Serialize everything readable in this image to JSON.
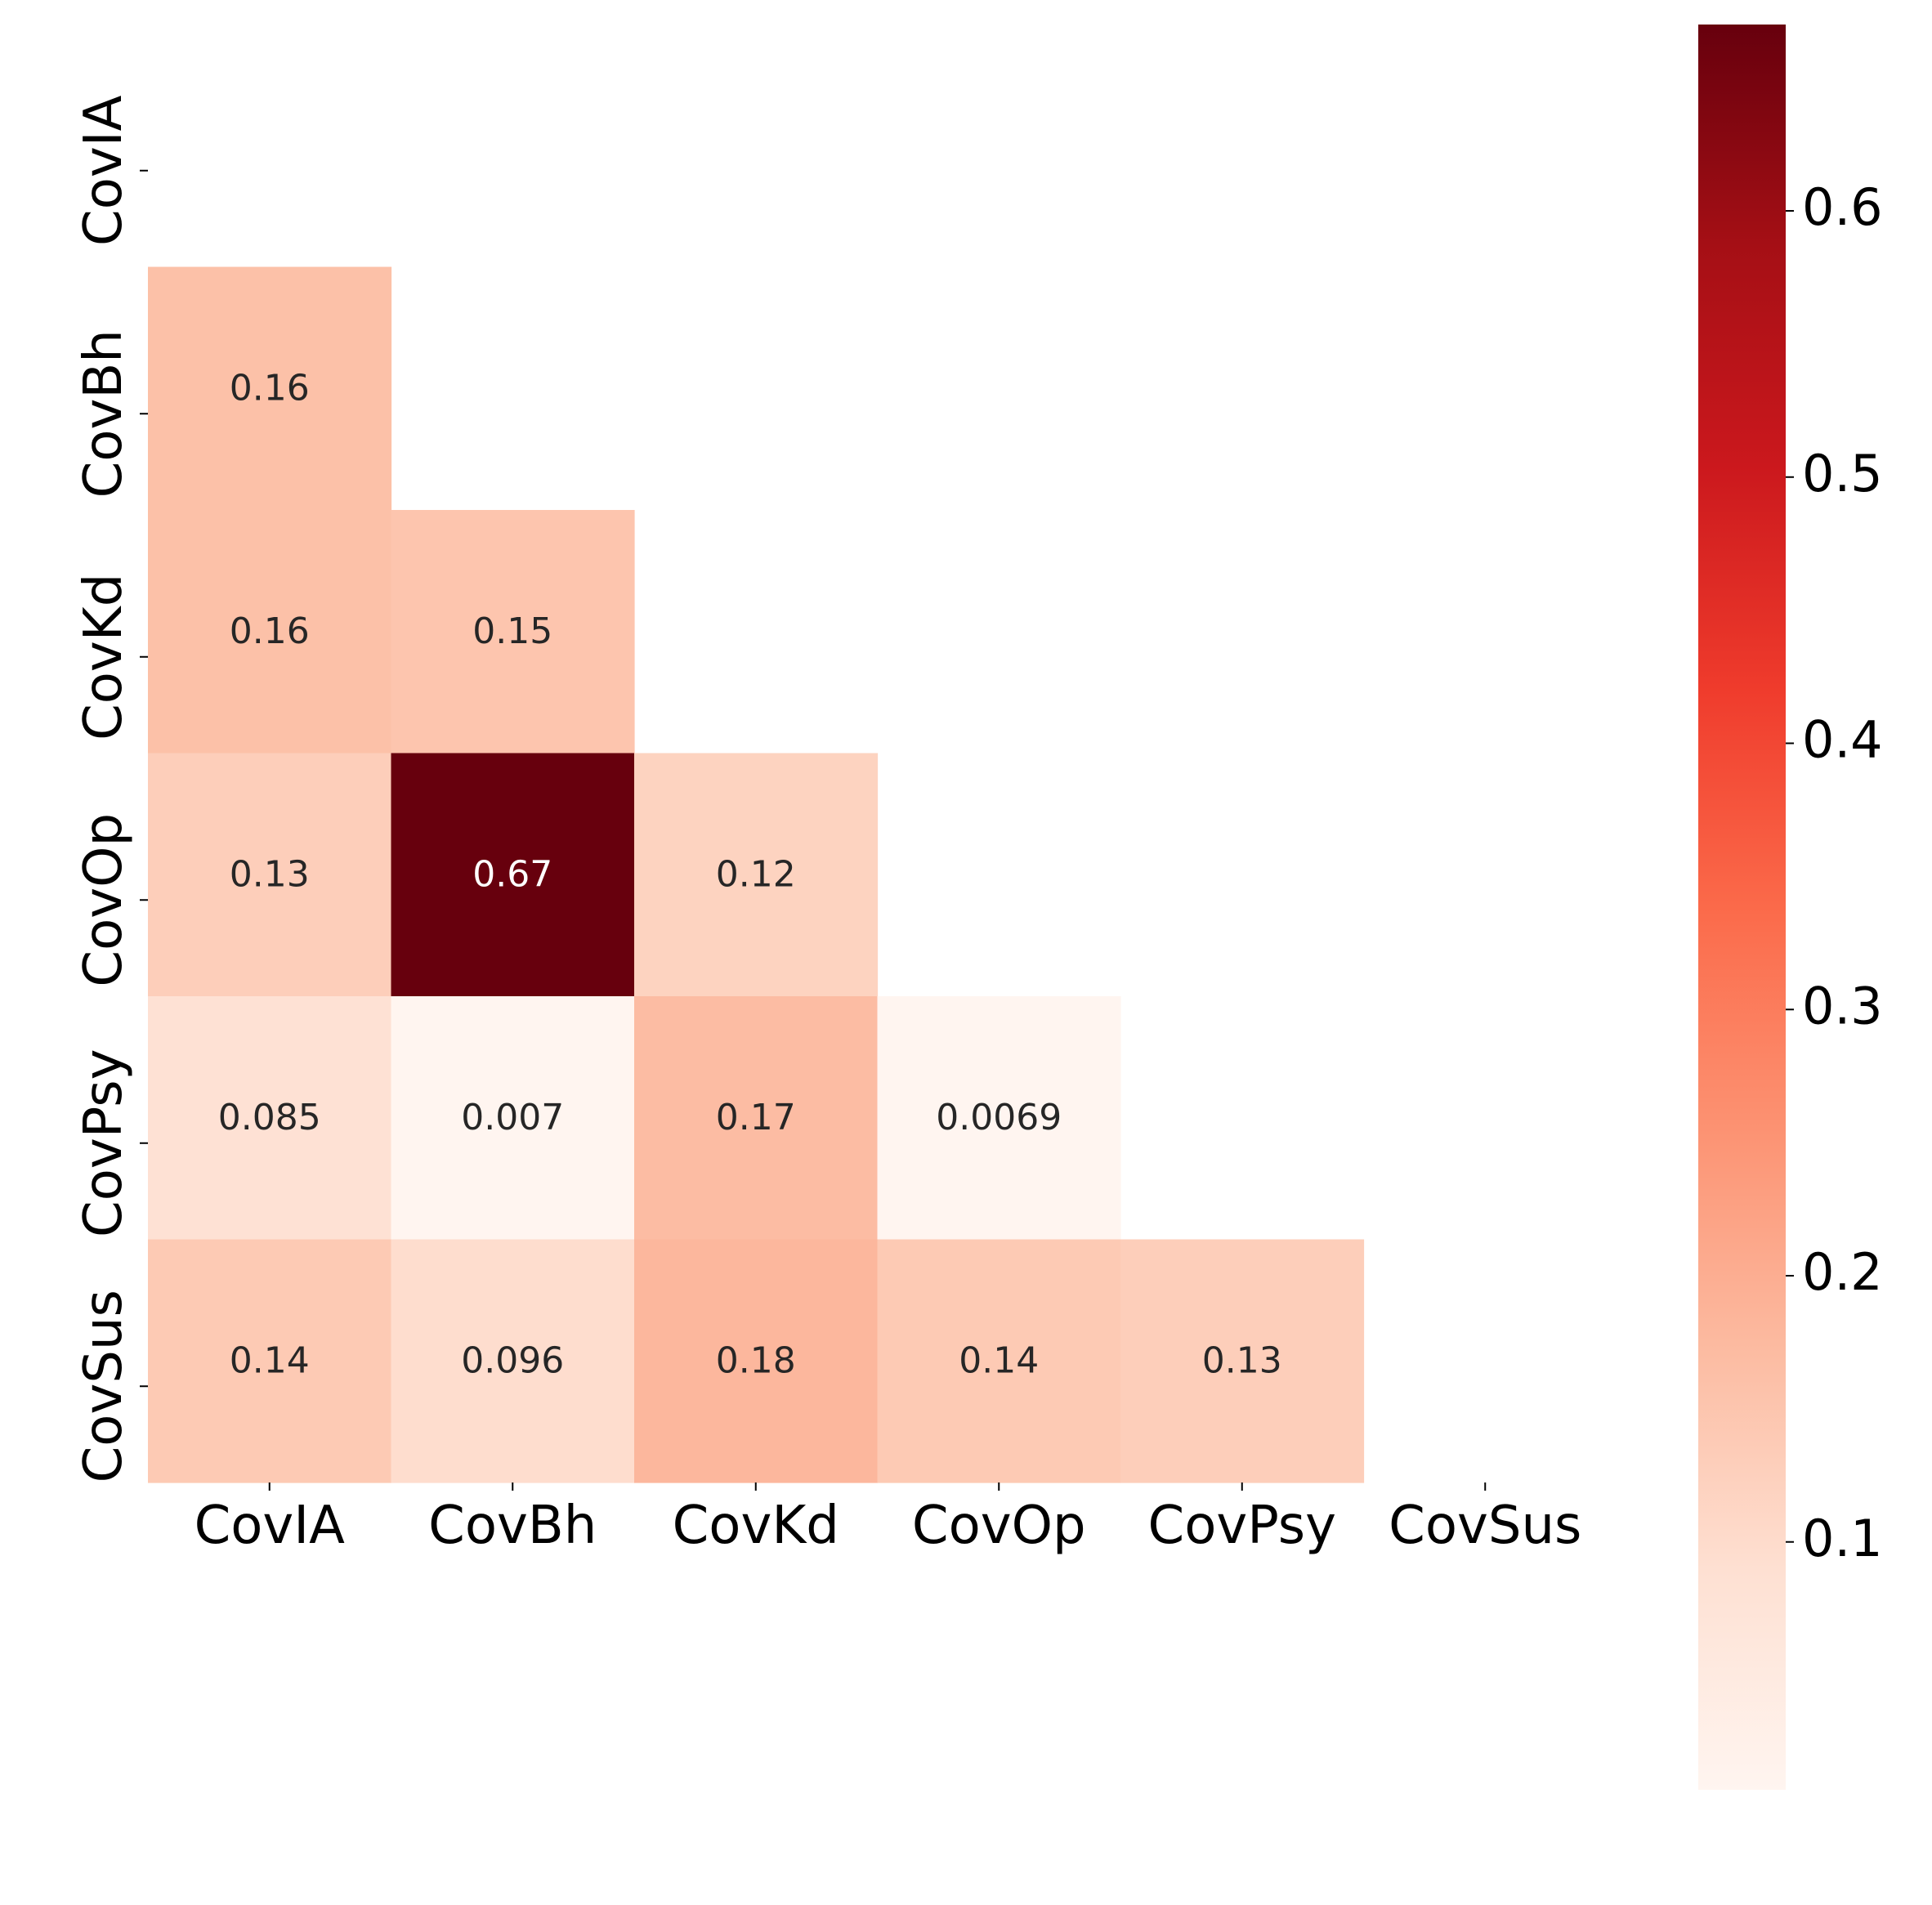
{
  "chart_data": {
    "type": "heatmap",
    "title": "",
    "xlabel": "",
    "ylabel": "",
    "rows": [
      "CovIA",
      "CovBh",
      "CovKd",
      "CovOp",
      "CovPsy",
      "CovSus"
    ],
    "columns": [
      "CovIA",
      "CovBh",
      "CovKd",
      "CovOp",
      "CovPsy",
      "CovSus"
    ],
    "mask": "upper-triangle-including-diagonal",
    "values": [
      [
        null,
        null,
        null,
        null,
        null,
        null
      ],
      [
        0.16,
        null,
        null,
        null,
        null,
        null
      ],
      [
        0.16,
        0.15,
        null,
        null,
        null,
        null
      ],
      [
        0.13,
        0.67,
        0.12,
        null,
        null,
        null
      ],
      [
        0.085,
        0.007,
        0.17,
        0.0069,
        null,
        null
      ],
      [
        0.14,
        0.096,
        0.18,
        0.14,
        0.13,
        null
      ]
    ],
    "value_labels": [
      [
        null,
        null,
        null,
        null,
        null,
        null
      ],
      [
        "0.16",
        null,
        null,
        null,
        null,
        null
      ],
      [
        "0.16",
        "0.15",
        null,
        null,
        null,
        null
      ],
      [
        "0.13",
        "0.67",
        "0.12",
        null,
        null,
        null
      ],
      [
        "0.085",
        "0.007",
        "0.17",
        "0.0069",
        null,
        null
      ],
      [
        "0.14",
        "0.096",
        "0.18",
        "0.14",
        "0.13",
        null
      ]
    ],
    "colormap": "Reds",
    "colormap_stops": [
      "#fff5f0",
      "#fee0d2",
      "#fcbba1",
      "#fc9272",
      "#fb6a4a",
      "#ef3b2c",
      "#cb181d",
      "#a50f15",
      "#67000d"
    ],
    "colorbar": {
      "range": [
        0.0069,
        0.67
      ],
      "ticks": [
        0.1,
        0.2,
        0.3,
        0.4,
        0.5,
        0.6
      ],
      "tick_labels": [
        "0.1",
        "0.2",
        "0.3",
        "0.4",
        "0.5",
        "0.6"
      ],
      "placement": "right"
    },
    "grid": false
  }
}
